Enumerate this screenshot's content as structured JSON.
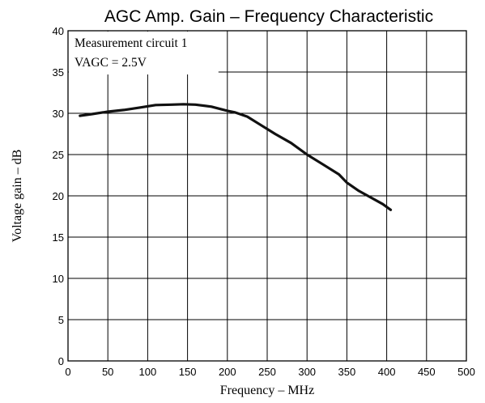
{
  "chart_data": {
    "type": "line",
    "title": "AGC Amp. Gain – Frequency Characteristic",
    "xlabel": "Frequency – MHz",
    "ylabel": "Voltage gain – dB",
    "xlim": [
      0,
      500
    ],
    "ylim": [
      0,
      40
    ],
    "xticks": [
      0,
      50,
      100,
      150,
      200,
      250,
      300,
      350,
      400,
      450,
      500
    ],
    "yticks": [
      0,
      5,
      10,
      15,
      20,
      25,
      30,
      35,
      40
    ],
    "grid": true,
    "annotations": [
      "Measurement circuit 1",
      "VAGC = 2.5V"
    ],
    "series": [
      {
        "x": [
          15,
          30,
          50,
          70,
          90,
          110,
          130,
          145,
          160,
          180,
          200,
          210,
          225,
          240,
          260,
          280,
          300,
          320,
          340,
          350,
          365,
          380,
          395,
          405
        ],
        "y": [
          29.7,
          29.9,
          30.2,
          30.4,
          30.7,
          31.0,
          31.05,
          31.1,
          31.05,
          30.8,
          30.3,
          30.1,
          29.6,
          28.7,
          27.5,
          26.4,
          25.0,
          23.8,
          22.6,
          21.6,
          20.6,
          19.8,
          19.0,
          18.3
        ]
      }
    ]
  }
}
